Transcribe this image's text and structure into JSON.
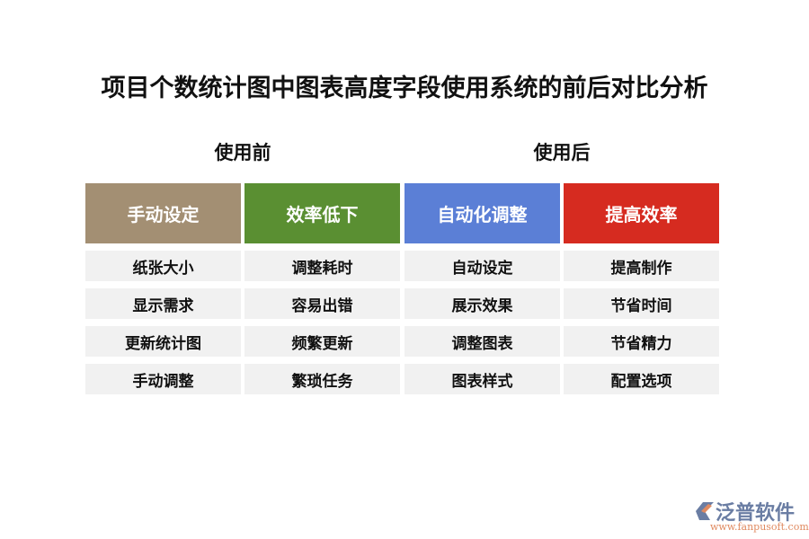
{
  "title": "项目个数统计图中图表高度字段使用系统的前后对比分析",
  "before_label": "使用前",
  "after_label": "使用后",
  "columns": [
    {
      "header": "手动设定",
      "color": "#a38f73",
      "items": [
        "纸张大小",
        "显示需求",
        "更新统计图",
        "手动调整"
      ]
    },
    {
      "header": "效率低下",
      "color": "#5a8f32",
      "items": [
        "调整耗时",
        "容易出错",
        "频繁更新",
        "繁琐任务"
      ]
    },
    {
      "header": "自动化调整",
      "color": "#5b7fd6",
      "items": [
        "自动设定",
        "展示效果",
        "调整图表",
        "图表样式"
      ]
    },
    {
      "header": "提高效率",
      "color": "#d62b20",
      "items": [
        "提高制作",
        "节省时间",
        "节省精力",
        "配置选项"
      ]
    }
  ],
  "logo": {
    "name": "泛普软件",
    "url": "www.fanpusoft.com"
  }
}
